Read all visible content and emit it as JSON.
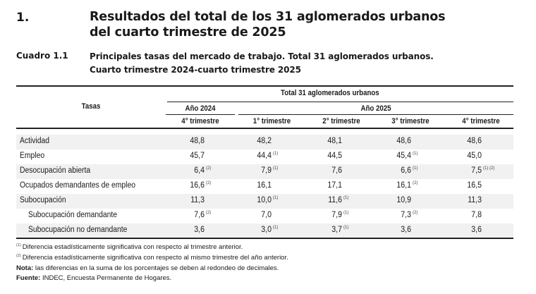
{
  "section": {
    "number": "1.",
    "title_line1": "Resultados del total de los 31 aglomerados urbanos",
    "title_line2": "del cuarto trimestre de 2025"
  },
  "cuadro": {
    "label": "Cuadro 1.1",
    "title_line1": "Principales tasas del mercado de trabajo. Total 31 aglomerados urbanos.",
    "title_line2": "Cuarto trimestre 2024-cuarto trimestre 2025"
  },
  "table": {
    "row_header": "Tasas",
    "group_header": "Total 31 aglomerados urbanos",
    "year_headers": [
      "Año 2024",
      "Año 2025"
    ],
    "columns": [
      "4° trimestre",
      "1° trimestre",
      "2° trimestre",
      "3° trimestre",
      "4° trimestre"
    ],
    "rows": [
      {
        "label": "Actividad",
        "indent": false,
        "shade": true,
        "cells": [
          {
            "v": "48,8",
            "n": ""
          },
          {
            "v": "48,2",
            "n": ""
          },
          {
            "v": "48,1",
            "n": ""
          },
          {
            "v": "48,6",
            "n": ""
          },
          {
            "v": "48,6",
            "n": ""
          }
        ]
      },
      {
        "label": "Empleo",
        "indent": false,
        "shade": false,
        "cells": [
          {
            "v": "45,7",
            "n": ""
          },
          {
            "v": "44,4",
            "n": "(1)"
          },
          {
            "v": "44,5",
            "n": ""
          },
          {
            "v": "45,4",
            "n": "(1)"
          },
          {
            "v": "45,0",
            "n": ""
          }
        ]
      },
      {
        "label": "Desocupación abierta",
        "indent": false,
        "shade": true,
        "cells": [
          {
            "v": "6,4",
            "n": "(2)"
          },
          {
            "v": "7,9",
            "n": "(1)"
          },
          {
            "v": "7,6",
            "n": ""
          },
          {
            "v": "6,6",
            "n": "(1)"
          },
          {
            "v": "7,5",
            "n": "(1) (2)"
          }
        ]
      },
      {
        "label": "Ocupados demandantes de empleo",
        "indent": false,
        "shade": false,
        "cells": [
          {
            "v": "16,6",
            "n": "(2)"
          },
          {
            "v": "16,1",
            "n": ""
          },
          {
            "v": "17,1",
            "n": ""
          },
          {
            "v": "16,1",
            "n": "(2)"
          },
          {
            "v": "16,5",
            "n": ""
          }
        ]
      },
      {
        "label": "Subocupación",
        "indent": false,
        "shade": true,
        "cells": [
          {
            "v": "11,3",
            "n": ""
          },
          {
            "v": "10,0",
            "n": "(1)"
          },
          {
            "v": "11,6",
            "n": "(1)"
          },
          {
            "v": "10,9",
            "n": ""
          },
          {
            "v": "11,3",
            "n": ""
          }
        ]
      },
      {
        "label": "Subocupación demandante",
        "indent": true,
        "shade": false,
        "cells": [
          {
            "v": "7,6",
            "n": "(2)"
          },
          {
            "v": "7,0",
            "n": ""
          },
          {
            "v": "7,9",
            "n": "(1)"
          },
          {
            "v": "7,3",
            "n": "(2)"
          },
          {
            "v": "7,8",
            "n": ""
          }
        ]
      },
      {
        "label": "Subocupación no demandante",
        "indent": true,
        "shade": true,
        "cells": [
          {
            "v": "3,6",
            "n": ""
          },
          {
            "v": "3,0",
            "n": "(1)"
          },
          {
            "v": "3,7",
            "n": "(1)"
          },
          {
            "v": "3,6",
            "n": ""
          },
          {
            "v": "3,6",
            "n": ""
          }
        ]
      }
    ]
  },
  "footnotes": {
    "note1_mark": "(1)",
    "note1_text": "Diferencia estadísticamente significativa con respecto al trimestre anterior.",
    "note2_mark": "(2)",
    "note2_text": "Diferencia estadísticamente significativa con respecto al mismo trimestre del año anterior.",
    "nota_label": "Nota:",
    "nota_text": " las diferencias en la suma de los porcentajes se deben al redondeo de decimales.",
    "fuente_label": "Fuente:",
    "fuente_text": " INDEC, Encuesta Permanente de Hogares."
  }
}
